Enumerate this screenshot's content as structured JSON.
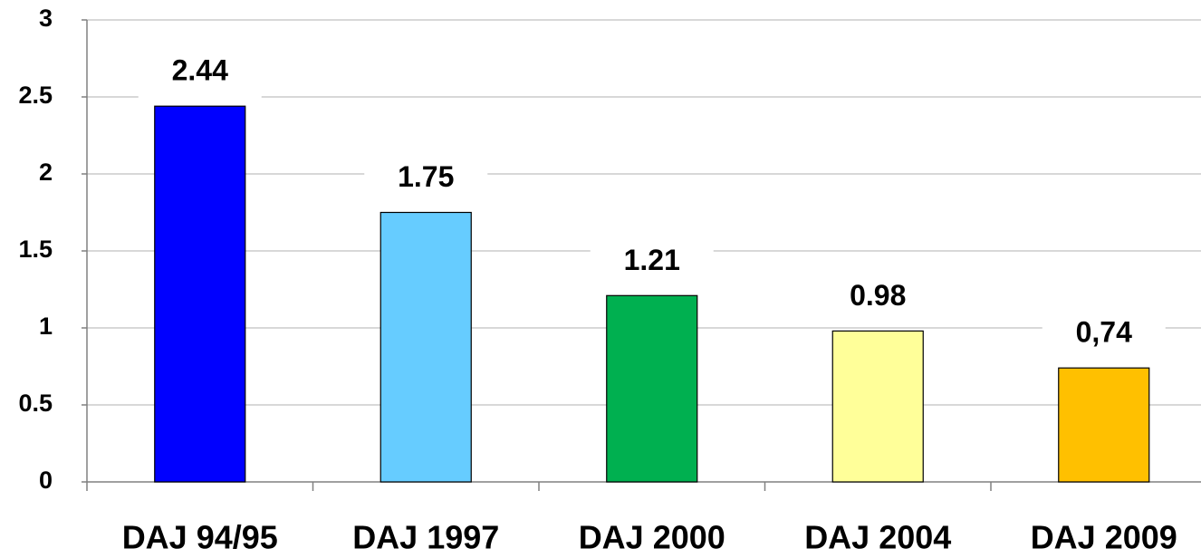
{
  "chart_data": {
    "type": "bar",
    "categories": [
      "DAJ 94/95",
      "DAJ 1997",
      "DAJ 2000",
      "DAJ 2004",
      "DAJ 2009"
    ],
    "values": [
      2.44,
      1.75,
      1.21,
      0.98,
      0.74
    ],
    "value_labels": [
      "2.44",
      "1.75",
      "1.21",
      "0.98",
      "0,74"
    ],
    "colors": [
      "#0000ff",
      "#66ccff",
      "#00b050",
      "#ffff99",
      "#ffc000"
    ],
    "ylim": [
      0,
      3
    ],
    "yticks": [
      0,
      0.5,
      1,
      1.5,
      2,
      2.5,
      3
    ],
    "grid": true
  }
}
